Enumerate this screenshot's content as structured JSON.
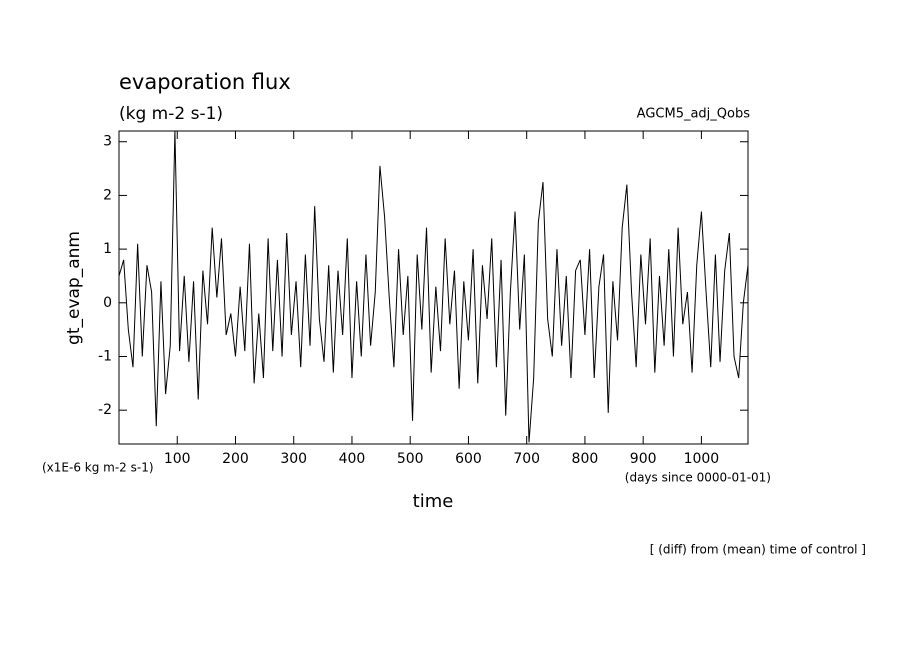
{
  "chart_data": {
    "type": "line",
    "title": "evaporation flux",
    "subtitle": "(kg m-2 s-1)",
    "source": "AGCM5_adj_Qobs",
    "ylabel": "gt_evap_anm",
    "yunits": "(x1E-6 kg m-2 s-1)",
    "xunits": "(days since 0000-01-01)",
    "xlabel": "time",
    "note": "[ (diff) from (mean) time of control ]",
    "color": "#000000",
    "xlim": [
      0,
      1080
    ],
    "xticks": [
      100,
      200,
      300,
      400,
      500,
      600,
      700,
      800,
      900,
      1000
    ],
    "ylim": [
      -2.63,
      3.2
    ],
    "yticks": [
      -2,
      -1,
      0,
      1,
      2,
      3
    ],
    "x": [
      0,
      8,
      16,
      24,
      32,
      40,
      48,
      56,
      64,
      72,
      80,
      88,
      96,
      104,
      112,
      120,
      128,
      136,
      144,
      152,
      160,
      168,
      176,
      184,
      192,
      200,
      208,
      216,
      224,
      232,
      240,
      248,
      256,
      264,
      272,
      280,
      288,
      296,
      304,
      312,
      320,
      328,
      336,
      344,
      352,
      360,
      368,
      376,
      384,
      392,
      400,
      408,
      416,
      424,
      432,
      440,
      448,
      456,
      464,
      472,
      480,
      488,
      496,
      504,
      512,
      520,
      528,
      536,
      544,
      552,
      560,
      568,
      576,
      584,
      592,
      600,
      608,
      616,
      624,
      632,
      640,
      648,
      656,
      664,
      672,
      680,
      688,
      696,
      704,
      712,
      720,
      728,
      736,
      744,
      752,
      760,
      768,
      776,
      784,
      792,
      800,
      808,
      816,
      824,
      832,
      840,
      848,
      856,
      864,
      872,
      880,
      888,
      896,
      904,
      912,
      920,
      928,
      936,
      944,
      952,
      960,
      968,
      976,
      984,
      992,
      1000,
      1008,
      1016,
      1024,
      1032,
      1040,
      1048,
      1056,
      1064,
      1072,
      1080
    ],
    "values": [
      0.5,
      0.8,
      -0.5,
      -1.2,
      1.1,
      -1.0,
      0.7,
      0.2,
      -2.3,
      0.4,
      -1.7,
      -0.8,
      3.2,
      -0.9,
      0.5,
      -1.1,
      0.4,
      -1.8,
      0.6,
      -0.4,
      1.4,
      0.1,
      1.2,
      -0.6,
      -0.2,
      -1.0,
      0.3,
      -0.9,
      1.1,
      -1.5,
      -0.2,
      -1.4,
      1.2,
      -0.9,
      0.8,
      -1.0,
      1.3,
      -0.6,
      0.4,
      -1.2,
      0.9,
      -0.8,
      1.8,
      -0.3,
      -1.1,
      0.7,
      -1.3,
      0.6,
      -0.6,
      1.2,
      -1.4,
      0.4,
      -1.0,
      0.9,
      -0.8,
      0.2,
      2.55,
      1.6,
      0.1,
      -1.2,
      1.0,
      -0.6,
      0.5,
      -2.2,
      0.9,
      -0.5,
      1.4,
      -1.3,
      0.3,
      -0.9,
      1.2,
      -0.4,
      0.6,
      -1.6,
      0.4,
      -0.7,
      1.0,
      -1.5,
      0.7,
      -0.3,
      1.2,
      -1.2,
      0.8,
      -2.1,
      0.2,
      1.7,
      -0.5,
      0.9,
      -2.6,
      -1.4,
      1.5,
      2.25,
      -0.3,
      -1.0,
      1.0,
      -0.8,
      0.5,
      -1.4,
      0.6,
      0.8,
      -0.6,
      1.0,
      -1.4,
      0.3,
      0.9,
      -2.05,
      0.4,
      -0.7,
      1.4,
      2.2,
      0.2,
      -1.2,
      0.9,
      -0.4,
      1.2,
      -1.3,
      0.5,
      -0.8,
      1.0,
      -1.0,
      1.4,
      -0.4,
      0.2,
      -1.3,
      0.7,
      1.7,
      0.2,
      -1.2,
      0.9,
      -1.1,
      0.6,
      1.3,
      -1.0,
      -1.4,
      0.0,
      0.7
    ]
  }
}
